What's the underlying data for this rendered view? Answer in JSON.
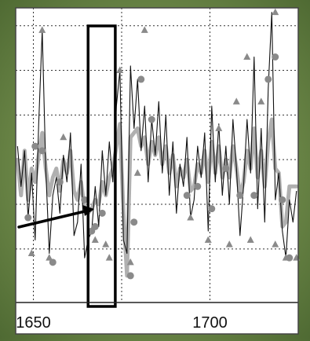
{
  "chart_data": {
    "type": "line",
    "title": "",
    "xlabel": "",
    "ylabel": "",
    "xlim": [
      1645,
      1725
    ],
    "ylim": [
      -3.2,
      3.4
    ],
    "x_ticks": [
      1650,
      1700
    ],
    "x_tick_labels": [
      "1650",
      "1700"
    ],
    "grid": true,
    "grid_style": "dotted",
    "legend": "none",
    "colors": {
      "thin_series": "#111111",
      "thick_series": "#b0b0b0",
      "markers": "#8a8a8a",
      "highlight_box": "#000000",
      "arrow": "#000000"
    },
    "series": [
      {
        "style": "thin-black-line",
        "x": [
          1645.5,
          1646.5,
          1647.5,
          1648.5,
          1649.5,
          1650.5,
          1651.5,
          1652.5,
          1653.5,
          1654.5,
          1655.5,
          1656.5,
          1657.5,
          1658.5,
          1659.5,
          1660.5,
          1661.5,
          1662.5,
          1663.5,
          1664.5,
          1665.5,
          1666.5,
          1667.5,
          1668.5,
          1669.5,
          1670.5,
          1671.5,
          1672.5,
          1673.5,
          1674.5,
          1675.5,
          1676.5,
          1677.5,
          1678.5,
          1679.5,
          1680.5,
          1681.5,
          1682.5,
          1683.5,
          1684.5,
          1685.5,
          1686.5,
          1687.5,
          1688.5,
          1689.5,
          1690.5,
          1691.5,
          1692.5,
          1693.5,
          1694.5,
          1695.5,
          1696.5,
          1697.5,
          1698.5,
          1699.5,
          1700.5,
          1701.5,
          1702.5,
          1703.5,
          1704.5,
          1705.5,
          1706.5,
          1707.5,
          1708.5,
          1709.5,
          1710.5,
          1711.5,
          1712.5,
          1713.5,
          1714.5,
          1715.5,
          1716.5,
          1717.5,
          1718.5,
          1719.5,
          1720.5,
          1721.5,
          1722.5,
          1723.5,
          1724.5
        ],
        "y": [
          0.3,
          -0.6,
          0.2,
          -1.3,
          -0.3,
          -1.8,
          0.8,
          2.9,
          -0.2,
          -2.1,
          -0.8,
          -0.4,
          -1.2,
          0.1,
          -0.5,
          0.6,
          -1.7,
          -1.4,
          -0.1,
          -2.2,
          -1.8,
          -1.6,
          -0.6,
          -1.5,
          0.2,
          -0.8,
          0.4,
          -0.5,
          1.2,
          2.0,
          -1.8,
          -2.1,
          2.1,
          0.7,
          1.8,
          0.2,
          1.2,
          -0.5,
          0.9,
          0.1,
          1.3,
          -0.3,
          1.0,
          -0.8,
          0.4,
          -1.2,
          -0.1,
          -0.6,
          0.5,
          -1.3,
          -0.9,
          0.3,
          -0.4,
          0.6,
          -1.6,
          1.2,
          -0.5,
          0.8,
          -0.8,
          0.3,
          -1.0,
          0.9,
          -0.2,
          -1.7,
          -0.6,
          0.9,
          -0.3,
          2.3,
          -1.1,
          0.7,
          -1.4,
          1.6,
          3.3,
          -0.9,
          -0.3,
          -1.6,
          -2.2,
          -0.9,
          -1.4,
          -0.7
        ]
      },
      {
        "style": "thick-grey-line",
        "x": [
          1645.5,
          1646.5,
          1647.5,
          1648.5,
          1649.5,
          1650.5,
          1651.5,
          1652.5,
          1653.5,
          1654.5,
          1655.5,
          1656.5,
          1657.5,
          1658.5,
          1659.5,
          1660.5,
          1661.5,
          1662.5,
          1663.5,
          1664.5,
          1665.5,
          1666.5,
          1667.5,
          1668.5,
          1669.5,
          1670.5,
          1671.5,
          1672.5,
          1673.5,
          1674.5,
          1675.5,
          1676.5,
          1677.5,
          1678.5,
          1679.5,
          1680.5,
          1681.5,
          1682.5,
          1683.5,
          1684.5,
          1685.5,
          1686.5,
          1687.5,
          1688.5,
          1689.5,
          1690.5,
          1691.5,
          1692.5,
          1693.5,
          1694.5,
          1695.5,
          1696.5,
          1697.5,
          1698.5,
          1699.5,
          1700.5,
          1701.5,
          1702.5,
          1703.5,
          1704.5,
          1705.5,
          1706.5,
          1707.5,
          1708.5,
          1709.5,
          1710.5,
          1711.5,
          1712.5,
          1713.5,
          1714.5,
          1715.5,
          1716.5,
          1717.5,
          1718.5,
          1719.5,
          1720.5,
          1721.5,
          1722.5,
          1723.5,
          1724.5
        ],
        "y": [
          0.0,
          -0.8,
          0.2,
          -0.9,
          -0.2,
          -0.5,
          0.1,
          0.6,
          -0.2,
          -0.8,
          -0.4,
          -0.2,
          -0.7,
          0.0,
          -0.3,
          0.2,
          -0.7,
          -0.9,
          -0.5,
          -1.1,
          -1.2,
          -1.1,
          -0.9,
          -1.0,
          -0.5,
          -0.8,
          -0.4,
          -0.2,
          0.3,
          0.8,
          -1.2,
          -2.6,
          0.5,
          0.6,
          0.7,
          0.3,
          0.5,
          -0.1,
          0.4,
          0.1,
          0.5,
          -0.1,
          0.3,
          -0.3,
          0.1,
          -0.6,
          -0.2,
          -0.4,
          0.0,
          -0.7,
          -0.6,
          -0.1,
          -0.3,
          0.2,
          -0.5,
          0.4,
          -0.3,
          0.3,
          -0.4,
          0.0,
          -0.4,
          0.3,
          -0.2,
          -0.8,
          -0.5,
          0.2,
          -0.2,
          0.7,
          -0.4,
          0.2,
          -0.6,
          0.4,
          0.9,
          -0.2,
          -0.3,
          -1.5,
          -1.4,
          -0.6,
          -0.6,
          -0.6
        ]
      }
    ],
    "circle_markers": {
      "x": [
        1648.5,
        1650.5,
        1652.5,
        1655.5,
        1657.5,
        1664.5,
        1666.5,
        1667.5,
        1669.5,
        1677.5,
        1678.5,
        1680.5,
        1683.5,
        1693.5,
        1696.5,
        1700.5,
        1704.5,
        1708.5,
        1712.5,
        1716.5,
        1718.5,
        1720.5,
        1722.5
      ],
      "y": [
        -1.3,
        0.3,
        0.2,
        -2.3,
        -0.5,
        -0.9,
        -1.6,
        -1.5,
        -1.2,
        -2.6,
        -1.4,
        1.8,
        0.9,
        -0.8,
        -0.6,
        -1.1,
        -0.2,
        -0.8,
        -0.8,
        1.8,
        2.3,
        -0.9,
        -2.2
      ]
    },
    "triangle_up_markers": {
      "x": [
        1652.5,
        1658.5,
        1674.5,
        1679.5,
        1681.5,
        1702.5,
        1707.5,
        1710.5,
        1714.5,
        1718.5
      ],
      "y": [
        2.9,
        0.5,
        2.0,
        -0.3,
        2.9,
        0.7,
        1.3,
        2.3,
        1.3,
        3.3
      ]
    },
    "triangle_down_markers": {
      "x": [
        1649.5,
        1654.5,
        1667.5,
        1670.5,
        1671.5,
        1677.5,
        1694.5,
        1699.5,
        1705.5,
        1711.5,
        1718.5,
        1721.5,
        1724.5
      ],
      "y": [
        -2.1,
        -2.2,
        -1.8,
        -1.9,
        -2.2,
        -2.3,
        -1.3,
        -1.8,
        -1.9,
        -1.8,
        -1.9,
        -2.2,
        -2.2
      ]
    },
    "highlight_box": {
      "x_range": [
        1665.5,
        1673.2
      ],
      "y_range": [
        -3.4,
        3.4
      ]
    }
  }
}
